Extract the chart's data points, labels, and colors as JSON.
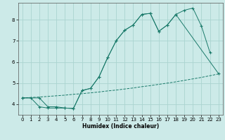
{
  "xlabel": "Humidex (Indice chaleur)",
  "background_color": "#cceae8",
  "grid_color": "#aad4d0",
  "line_color": "#1a7a6a",
  "xlim": [
    -0.5,
    23.5
  ],
  "ylim": [
    3.5,
    8.8
  ],
  "yticks": [
    4,
    5,
    6,
    7,
    8
  ],
  "xticks": [
    0,
    1,
    2,
    3,
    4,
    5,
    6,
    7,
    8,
    9,
    10,
    11,
    12,
    13,
    14,
    15,
    16,
    17,
    18,
    19,
    20,
    21,
    22,
    23
  ],
  "line1_x": [
    0,
    1,
    2,
    3,
    4,
    5,
    6,
    7,
    8,
    9,
    10,
    11,
    12,
    13,
    14,
    15,
    16,
    17,
    18,
    19,
    20,
    21,
    22,
    23
  ],
  "line1_y": [
    4.3,
    4.32,
    4.34,
    4.37,
    4.4,
    4.43,
    4.47,
    4.5,
    4.54,
    4.58,
    4.63,
    4.67,
    4.72,
    4.77,
    4.83,
    4.88,
    4.94,
    5.0,
    5.06,
    5.13,
    5.2,
    5.27,
    5.35,
    5.43
  ],
  "line2_x": [
    0,
    1,
    2,
    3,
    4,
    5,
    6,
    7,
    8,
    9,
    10,
    11,
    12,
    13,
    14,
    15,
    16,
    17,
    18,
    23
  ],
  "line2_y": [
    4.3,
    4.3,
    3.88,
    3.82,
    3.82,
    3.82,
    3.8,
    4.65,
    4.75,
    5.3,
    6.2,
    7.0,
    7.5,
    7.75,
    8.25,
    8.3,
    7.45,
    7.75,
    8.25,
    5.45
  ],
  "line3_x": [
    0,
    2,
    3,
    4,
    5,
    6,
    7,
    8,
    9,
    10,
    11,
    12,
    13,
    14,
    15,
    16,
    17,
    18,
    19,
    20,
    21,
    22
  ],
  "line3_y": [
    4.3,
    4.3,
    3.88,
    3.88,
    3.82,
    3.8,
    4.65,
    4.75,
    5.3,
    6.2,
    7.0,
    7.5,
    7.75,
    8.25,
    8.3,
    7.45,
    7.75,
    8.25,
    8.45,
    8.55,
    7.7,
    6.45
  ]
}
